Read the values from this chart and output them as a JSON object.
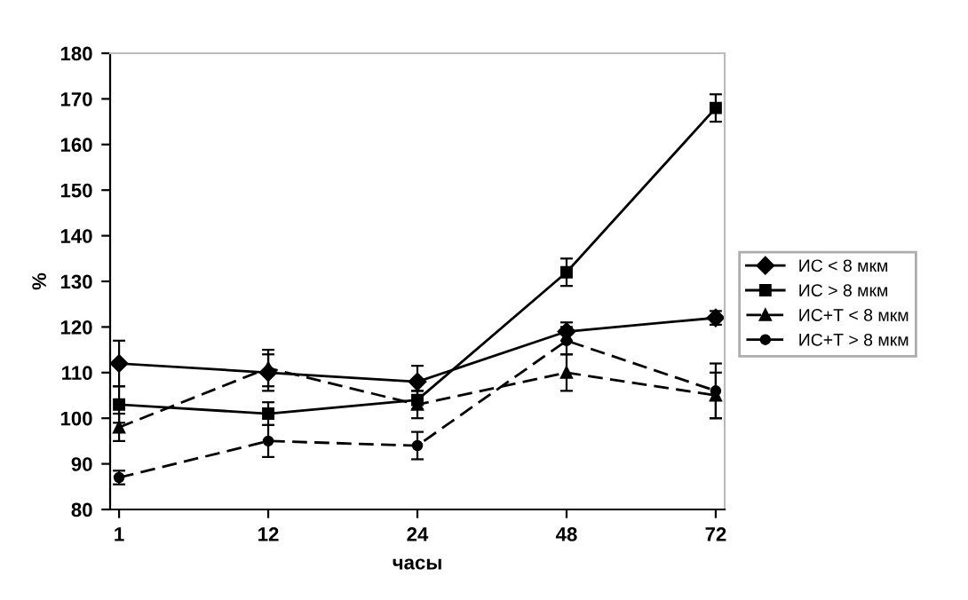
{
  "chart_data": {
    "type": "line",
    "xlabel": "часы",
    "ylabel": "%",
    "categories": [
      "1",
      "12",
      "24",
      "48",
      "72"
    ],
    "ylim": [
      80,
      180
    ],
    "yticks": [
      80,
      90,
      100,
      110,
      120,
      130,
      140,
      150,
      160,
      170,
      180
    ],
    "grid": false,
    "legend": "right",
    "series": [
      {
        "name": "ИС < 8 мкм",
        "color": "#000000",
        "marker": "diamond",
        "line_style": "solid",
        "values": [
          112,
          110,
          108,
          119,
          122
        ],
        "errors": [
          5,
          4,
          3.5,
          2,
          1.5
        ]
      },
      {
        "name": "ИС > 8 мкм",
        "color": "#000000",
        "marker": "square",
        "line_style": "solid",
        "values": [
          103,
          101,
          104,
          132,
          168
        ],
        "errors": [
          4,
          2.5,
          2,
          3,
          3
        ]
      },
      {
        "name": "ИС+Т < 8 мкм",
        "color": "#000000",
        "marker": "triangle",
        "line_style": "dashed",
        "values": [
          98,
          111,
          103,
          110,
          105
        ],
        "errors": [
          3,
          4,
          3,
          4,
          5
        ]
      },
      {
        "name": "ИС+Т > 8 мкм",
        "color": "#000000",
        "marker": "circle",
        "line_style": "dashed",
        "values": [
          87,
          95,
          94,
          117,
          106
        ],
        "errors": [
          1.5,
          3.5,
          3,
          3,
          6
        ]
      }
    ]
  }
}
